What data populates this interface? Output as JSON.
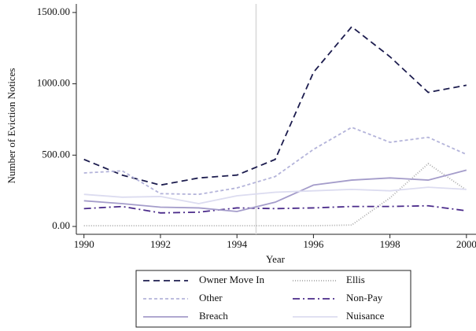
{
  "chart_data": {
    "type": "line",
    "x_label": "Year",
    "y_label": "Number of Eviction Notices",
    "x": [
      1990,
      1991,
      1992,
      1993,
      1994,
      1995,
      1996,
      1997,
      1998,
      1999,
      2000
    ],
    "xlim": [
      1989.8,
      2000.25
    ],
    "xticks": [
      1990,
      1992,
      1994,
      1996,
      1998,
      2000
    ],
    "ylim": [
      -55,
      1560
    ],
    "yticks": [
      {
        "value": 0,
        "label": "0.00"
      },
      {
        "value": 500,
        "label": "500.00"
      },
      {
        "value": 1000,
        "label": "1000.00"
      },
      {
        "value": 1500,
        "label": "1500.00"
      }
    ],
    "vlines": [
      1994.5
    ],
    "vline_color": "#d8d8d8",
    "series": [
      {
        "name": "Owner Move In",
        "color": "#1c1c4e",
        "dash": "8,5",
        "values": [
          470,
          360,
          290,
          340,
          360,
          470,
          1080,
          1400,
          1190,
          940,
          990
        ]
      },
      {
        "name": "Ellis",
        "color": "#aaaaaa",
        "dash": "1,2",
        "values": [
          5,
          5,
          5,
          5,
          5,
          5,
          5,
          10,
          200,
          440,
          255
        ]
      },
      {
        "name": "Other",
        "color": "#b4b4da",
        "dash": "4,3",
        "values": [
          375,
          390,
          230,
          225,
          270,
          350,
          540,
          695,
          590,
          625,
          505
        ]
      },
      {
        "name": "Non-Pay",
        "color": "#4a2a8a",
        "dash": "9,4,2,4",
        "values": [
          125,
          140,
          95,
          100,
          130,
          125,
          130,
          140,
          140,
          145,
          110
        ]
      },
      {
        "name": "Breach",
        "color": "#a49cca",
        "dash": "",
        "values": [
          180,
          160,
          135,
          130,
          105,
          170,
          290,
          325,
          340,
          325,
          395
        ]
      },
      {
        "name": "Nuisance",
        "color": "#dcdcf0",
        "dash": "",
        "values": [
          225,
          205,
          210,
          160,
          215,
          240,
          250,
          260,
          250,
          275,
          260
        ]
      }
    ]
  }
}
